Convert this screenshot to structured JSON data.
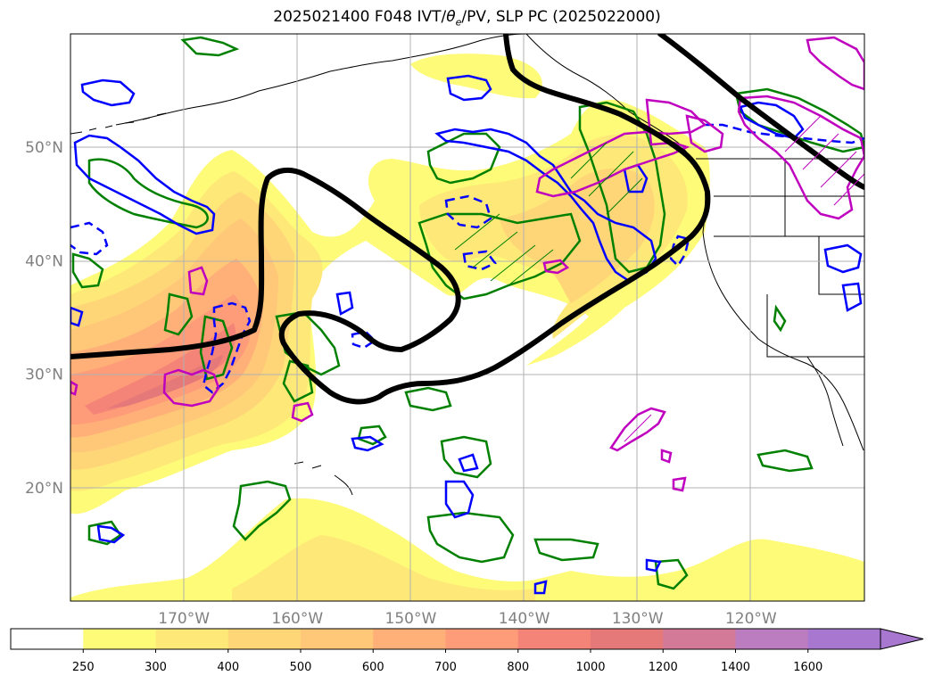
{
  "title": {
    "prefix": "2025021400 F048 IVT/",
    "theta": "θ",
    "theta_sub": "e",
    "suffix": "/PV, SLP PC (2025022000)"
  },
  "map": {
    "lon_range": [
      -180,
      -110
    ],
    "lat_range": [
      10,
      60
    ],
    "lon_ticks": [
      {
        "lon": -170,
        "label": "170°W"
      },
      {
        "lon": -160,
        "label": "160°W"
      },
      {
        "lon": -150,
        "label": "150°W"
      },
      {
        "lon": -140,
        "label": "140°W"
      },
      {
        "lon": -130,
        "label": "130°W"
      },
      {
        "lon": -120,
        "label": "120°W"
      }
    ],
    "lat_ticks": [
      {
        "lat": 20,
        "label": "20°N"
      },
      {
        "lat": 30,
        "label": "30°N"
      },
      {
        "lat": 40,
        "label": "40°N"
      },
      {
        "lat": 50,
        "label": "50°N"
      }
    ],
    "grid": true
  },
  "colorbar": {
    "levels": [
      "250",
      "300",
      "400",
      "500",
      "600",
      "700",
      "800",
      "1000",
      "1200",
      "1400",
      "1600"
    ],
    "colors": [
      "#ffffff",
      "#fefb78",
      "#fee878",
      "#fed678",
      "#fec878",
      "#feb078",
      "#fe9b78",
      "#f58478",
      "#e57878",
      "#d37a98",
      "#bb7cc0",
      "#a878d0"
    ],
    "extend": "max"
  },
  "colors": {
    "slp_contour": "#000000",
    "theta_e_contour": "#008000",
    "pv_positive": "#0000ff",
    "pv_negative": "#bf00bf"
  }
}
